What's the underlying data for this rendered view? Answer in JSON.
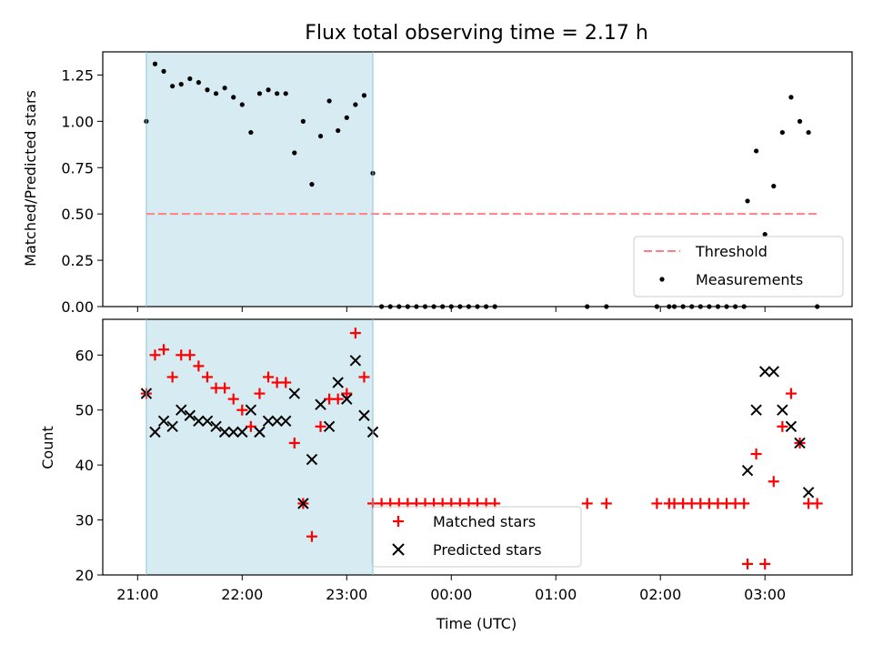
{
  "chart_data": [
    {
      "type": "scatter",
      "title": "Flux total observing time = 2.17 h",
      "ylabel": "Matched/Predicted stars",
      "xlabel": "",
      "ylim": [
        0,
        1.375
      ],
      "x_range_hours_utc": [
        "20:40",
        "03:50"
      ],
      "x_ticks": [
        "21:00",
        "22:00",
        "23:00",
        "00:00",
        "01:00",
        "02:00",
        "03:00"
      ],
      "y_ticks": [
        "0.00",
        "0.25",
        "0.50",
        "0.75",
        "1.00",
        "1.25"
      ],
      "shaded_span": [
        "21:05",
        "23:15"
      ],
      "shade_color": "#add8e6",
      "threshold": {
        "name": "Threshold",
        "value": 0.5,
        "from": "21:05",
        "to": "03:30",
        "color": "#ff8080"
      },
      "legend": {
        "placement": "lower-right",
        "entries": [
          "Threshold",
          "Measurements"
        ]
      },
      "series": [
        {
          "name": "Measurements",
          "color": "#000000",
          "points": [
            [
              "21:05",
              1.0
            ],
            [
              "21:10",
              1.31
            ],
            [
              "21:15",
              1.27
            ],
            [
              "21:20",
              1.19
            ],
            [
              "21:25",
              1.2
            ],
            [
              "21:30",
              1.23
            ],
            [
              "21:35",
              1.21
            ],
            [
              "21:40",
              1.17
            ],
            [
              "21:45",
              1.15
            ],
            [
              "21:50",
              1.18
            ],
            [
              "21:55",
              1.13
            ],
            [
              "22:00",
              1.09
            ],
            [
              "22:05",
              0.94
            ],
            [
              "22:10",
              1.15
            ],
            [
              "22:15",
              1.17
            ],
            [
              "22:20",
              1.15
            ],
            [
              "22:25",
              1.15
            ],
            [
              "22:30",
              0.83
            ],
            [
              "22:35",
              1.0
            ],
            [
              "22:40",
              0.66
            ],
            [
              "22:45",
              0.92
            ],
            [
              "22:50",
              1.11
            ],
            [
              "22:55",
              0.95
            ],
            [
              "23:00",
              1.02
            ],
            [
              "23:05",
              1.09
            ],
            [
              "23:10",
              1.14
            ],
            [
              "23:15",
              0.72
            ],
            [
              "23:20",
              0
            ],
            [
              "23:25",
              0
            ],
            [
              "23:30",
              0
            ],
            [
              "23:35",
              0
            ],
            [
              "23:40",
              0
            ],
            [
              "23:45",
              0
            ],
            [
              "23:50",
              0
            ],
            [
              "23:55",
              0
            ],
            [
              "00:00",
              0
            ],
            [
              "00:05",
              0
            ],
            [
              "00:10",
              0
            ],
            [
              "00:15",
              0
            ],
            [
              "00:20",
              0
            ],
            [
              "00:25",
              0
            ],
            [
              "01:18",
              0
            ],
            [
              "01:29",
              0
            ],
            [
              "01:58",
              0
            ],
            [
              "02:05",
              0
            ],
            [
              "02:08",
              0
            ],
            [
              "02:13",
              0
            ],
            [
              "02:18",
              0
            ],
            [
              "02:23",
              0
            ],
            [
              "02:28",
              0
            ],
            [
              "02:33",
              0
            ],
            [
              "02:38",
              0
            ],
            [
              "02:43",
              0
            ],
            [
              "02:48",
              0
            ],
            [
              "02:50",
              0.57
            ],
            [
              "02:55",
              0.84
            ],
            [
              "03:00",
              0.39
            ],
            [
              "03:05",
              0.65
            ],
            [
              "03:10",
              0.94
            ],
            [
              "03:15",
              1.13
            ],
            [
              "03:20",
              1.0
            ],
            [
              "03:25",
              0.94
            ],
            [
              "03:30",
              0
            ]
          ]
        }
      ]
    },
    {
      "type": "scatter",
      "title": "",
      "ylabel": "Count",
      "xlabel": "Time (UTC)",
      "ylim": [
        20,
        66.5
      ],
      "x_range_hours_utc": [
        "20:40",
        "03:50"
      ],
      "x_ticks": [
        "21:00",
        "22:00",
        "23:00",
        "00:00",
        "01:00",
        "02:00",
        "03:00"
      ],
      "y_ticks": [
        "20",
        "30",
        "40",
        "50",
        "60"
      ],
      "shaded_span": [
        "21:05",
        "23:15"
      ],
      "shade_color": "#add8e6",
      "legend": {
        "placement": "lower-center",
        "entries": [
          "Matched stars",
          "Predicted stars"
        ]
      },
      "series": [
        {
          "name": "Matched stars",
          "marker": "plus",
          "color": "#ff0000",
          "points": [
            [
              "21:05",
              53
            ],
            [
              "21:10",
              60
            ],
            [
              "21:15",
              61
            ],
            [
              "21:20",
              56
            ],
            [
              "21:25",
              60
            ],
            [
              "21:30",
              60
            ],
            [
              "21:35",
              58
            ],
            [
              "21:40",
              56
            ],
            [
              "21:45",
              54
            ],
            [
              "21:50",
              54
            ],
            [
              "21:55",
              52
            ],
            [
              "22:00",
              50
            ],
            [
              "22:05",
              47
            ],
            [
              "22:10",
              53
            ],
            [
              "22:15",
              56
            ],
            [
              "22:20",
              55
            ],
            [
              "22:25",
              55
            ],
            [
              "22:30",
              44
            ],
            [
              "22:35",
              33
            ],
            [
              "22:40",
              27
            ],
            [
              "22:45",
              47
            ],
            [
              "22:50",
              52
            ],
            [
              "22:55",
              52
            ],
            [
              "23:00",
              53
            ],
            [
              "23:05",
              64
            ],
            [
              "23:10",
              56
            ],
            [
              "23:15",
              33
            ],
            [
              "23:20",
              33
            ],
            [
              "23:25",
              33
            ],
            [
              "23:30",
              33
            ],
            [
              "23:35",
              33
            ],
            [
              "23:40",
              33
            ],
            [
              "23:45",
              33
            ],
            [
              "23:50",
              33
            ],
            [
              "23:55",
              33
            ],
            [
              "00:00",
              33
            ],
            [
              "00:05",
              33
            ],
            [
              "00:10",
              33
            ],
            [
              "00:15",
              33
            ],
            [
              "00:20",
              33
            ],
            [
              "00:25",
              33
            ],
            [
              "01:18",
              33
            ],
            [
              "01:29",
              33
            ],
            [
              "01:58",
              33
            ],
            [
              "02:05",
              33
            ],
            [
              "02:08",
              33
            ],
            [
              "02:13",
              33
            ],
            [
              "02:18",
              33
            ],
            [
              "02:23",
              33
            ],
            [
              "02:28",
              33
            ],
            [
              "02:33",
              33
            ],
            [
              "02:38",
              33
            ],
            [
              "02:43",
              33
            ],
            [
              "02:48",
              33
            ],
            [
              "02:50",
              22
            ],
            [
              "02:55",
              42
            ],
            [
              "03:00",
              22
            ],
            [
              "03:05",
              37
            ],
            [
              "03:10",
              47
            ],
            [
              "03:15",
              53
            ],
            [
              "03:20",
              44
            ],
            [
              "03:25",
              33
            ],
            [
              "03:30",
              33
            ]
          ]
        },
        {
          "name": "Predicted stars",
          "marker": "x",
          "color": "#000000",
          "points": [
            [
              "21:05",
              53
            ],
            [
              "21:10",
              46
            ],
            [
              "21:15",
              48
            ],
            [
              "21:20",
              47
            ],
            [
              "21:25",
              50
            ],
            [
              "21:30",
              49
            ],
            [
              "21:35",
              48
            ],
            [
              "21:40",
              48
            ],
            [
              "21:45",
              47
            ],
            [
              "21:50",
              46
            ],
            [
              "21:55",
              46
            ],
            [
              "22:00",
              46
            ],
            [
              "22:05",
              50
            ],
            [
              "22:10",
              46
            ],
            [
              "22:15",
              48
            ],
            [
              "22:20",
              48
            ],
            [
              "22:25",
              48
            ],
            [
              "22:30",
              53
            ],
            [
              "22:35",
              33
            ],
            [
              "22:40",
              41
            ],
            [
              "22:45",
              51
            ],
            [
              "22:50",
              47
            ],
            [
              "22:55",
              55
            ],
            [
              "23:00",
              52
            ],
            [
              "23:05",
              59
            ],
            [
              "23:10",
              49
            ],
            [
              "23:15",
              46
            ],
            [
              "02:50",
              39
            ],
            [
              "02:55",
              50
            ],
            [
              "03:00",
              57
            ],
            [
              "03:05",
              57
            ],
            [
              "03:10",
              50
            ],
            [
              "03:15",
              47
            ],
            [
              "03:20",
              44
            ],
            [
              "03:25",
              35
            ]
          ]
        }
      ]
    }
  ]
}
